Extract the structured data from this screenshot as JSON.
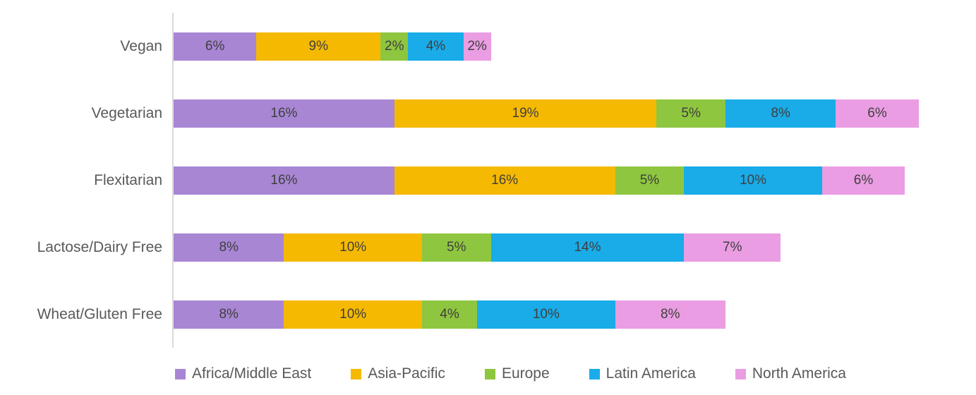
{
  "chart_data": {
    "type": "bar",
    "orientation": "horizontal",
    "stacked": true,
    "title": "",
    "xlabel": "",
    "ylabel": "",
    "grid": false,
    "axes_ticks_visible": false,
    "value_suffix": "%",
    "data_labels": true,
    "legend_position": "bottom",
    "categories": [
      "Vegan",
      "Vegetarian",
      "Flexitarian",
      "Lactose/Dairy Free",
      "Wheat/Gluten Free"
    ],
    "series": [
      {
        "name": "Africa/Middle East",
        "color": "#a886d4",
        "values": [
          6,
          16,
          16,
          8,
          8
        ]
      },
      {
        "name": "Asia-Pacific",
        "color": "#f5b901",
        "values": [
          9,
          19,
          16,
          10,
          10
        ]
      },
      {
        "name": "Europe",
        "color": "#8ec63f",
        "values": [
          2,
          5,
          5,
          5,
          4
        ]
      },
      {
        "name": "Latin America",
        "color": "#19ace8",
        "values": [
          4,
          8,
          10,
          14,
          10
        ]
      },
      {
        "name": "North America",
        "color": "#ea9de2",
        "values": [
          2,
          6,
          6,
          7,
          8
        ]
      }
    ],
    "category_totals": [
      23,
      54,
      53,
      44,
      40
    ],
    "colors": {
      "data_label": "#3f3f3f",
      "category_label": "#595959",
      "legend_label": "#595959",
      "axis_line": "#d9d9d9"
    }
  }
}
